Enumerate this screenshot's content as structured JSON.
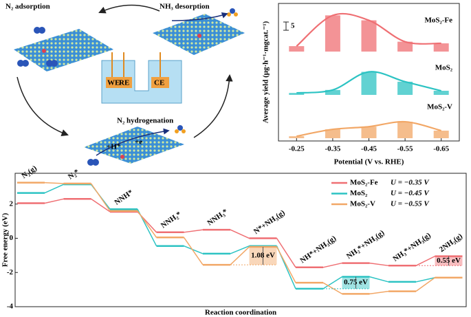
{
  "diagram": {
    "steps": [
      "N₂ adsorption",
      "NH₃ desorption",
      "N₂ hydrogenation"
    ],
    "electrodes": [
      "WE",
      "RE",
      "CE"
    ],
    "reagents": [
      "+H⁺",
      "+e"
    ]
  },
  "chart_data": [
    {
      "type": "bar",
      "ylabel": "Average yield (μg·h⁻¹·mgcat.⁻¹)",
      "xlabel": "Potential (V vs. RHE)",
      "categories": [
        "-0.25",
        "-0.35",
        "-0.45",
        "-0.55",
        "-0.65"
      ],
      "ylim": [
        0,
        28
      ],
      "scale_bar": 5,
      "series": [
        {
          "name": "MoS₂-Fe",
          "color": "#ef6f73",
          "values": [
            3.3,
            22,
            19,
            6,
            5
          ]
        },
        {
          "name": "MoS₂",
          "color": "#2cc3c3",
          "values": [
            1.2,
            3,
            14,
            8,
            2.5
          ]
        },
        {
          "name": "MoS₂-V",
          "color": "#f2a766",
          "values": [
            1.2,
            5.4,
            7,
            10,
            4.6
          ]
        }
      ]
    },
    {
      "type": "step",
      "ylabel": "Free energy (eV)",
      "xlabel": "Reaction coordination",
      "categories": [
        "N₂(g)",
        "N₂*",
        "NNH*",
        "NNH₂*",
        "NNH₃*",
        "N*+NH₃(g)",
        "NH*+NH₃(g)",
        "NH₂*+NH₃(g)",
        "NH₃*+NH₃(g)",
        "2NH₃(g)"
      ],
      "ylim": [
        -4,
        3.8
      ],
      "yticks": [
        -4,
        -2,
        0,
        2
      ],
      "series": [
        {
          "name": "MoS₂-Fe",
          "label": "U = −0.35 V",
          "color": "#ef6f73",
          "values": [
            2.05,
            2.3,
            1.55,
            0.35,
            0.5,
            0.0,
            -1.7,
            -1.45,
            -1.6,
            -1.05
          ]
        },
        {
          "name": "MoS₂",
          "label": "U = −0.45 V",
          "color": "#2cc3c3",
          "values": [
            2.65,
            3.15,
            1.7,
            -0.45,
            -0.9,
            -0.45,
            -2.95,
            -2.25,
            -2.55,
            -2.3
          ]
        },
        {
          "name": "MoS₂-V",
          "label": "U = −0.55 V",
          "color": "#f2a766",
          "values": [
            3.25,
            3.2,
            1.6,
            0.05,
            -1.55,
            -0.5,
            -2.6,
            -3.25,
            -3.1,
            -2.3
          ]
        }
      ],
      "annotations": [
        "1.08 eV",
        "0.75 eV",
        "0.55 eV"
      ]
    }
  ]
}
